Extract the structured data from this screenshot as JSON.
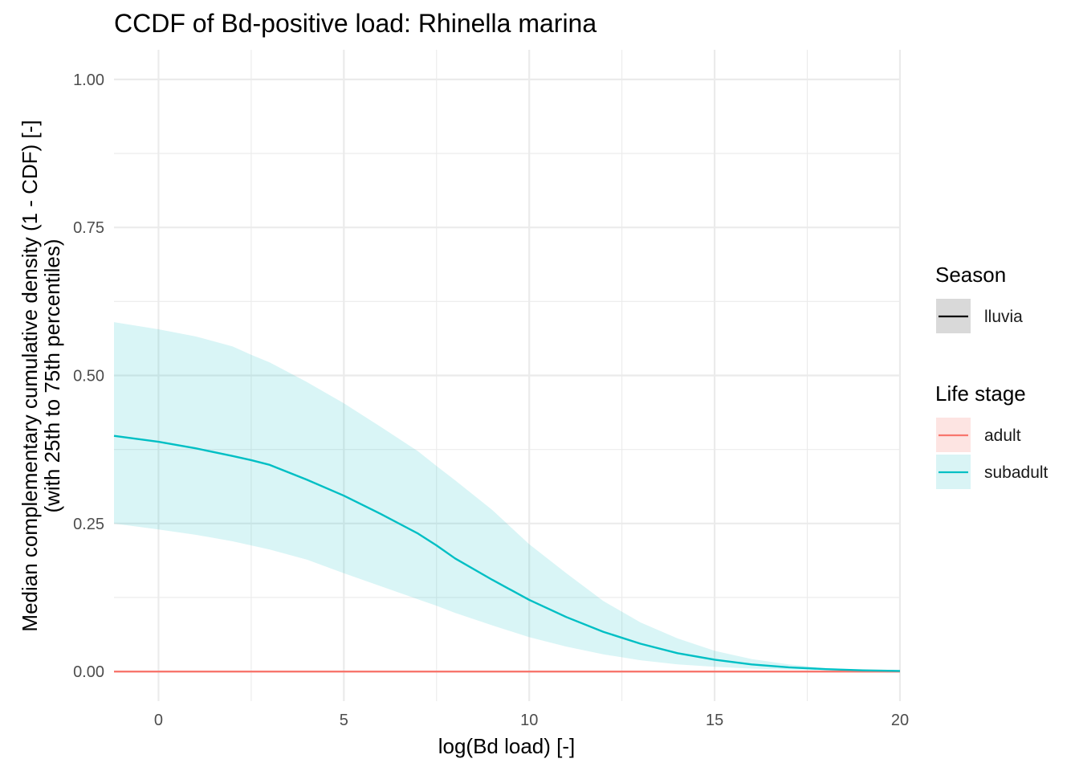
{
  "chart_data": {
    "type": "line",
    "title": "CCDF of Bd-positive load: Rhinella marina",
    "xlabel": "log(Bd load) [-]",
    "ylabel_line1": "Median complementary cumulative density (1 - CDF) [-]",
    "ylabel_line2": "(with 25th to 75th percentiles)",
    "xlim": [
      -1.2,
      20
    ],
    "ylim": [
      -0.05,
      1.05
    ],
    "x_ticks": [
      0,
      5,
      10,
      15,
      20
    ],
    "x_tick_labels": [
      "0",
      "5",
      "10",
      "15",
      "20"
    ],
    "y_ticks": [
      0,
      0.25,
      0.5,
      0.75,
      1.0
    ],
    "y_tick_labels": [
      "0.00",
      "0.25",
      "0.50",
      "0.75",
      "1.00"
    ],
    "grid": true,
    "legend_position": "right",
    "legend": [
      {
        "title": "Season",
        "entries": [
          {
            "label": "lluvia",
            "color": "#000000",
            "fill": "#d9d9d9"
          }
        ]
      },
      {
        "title": "Life stage",
        "entries": [
          {
            "label": "adult",
            "color": "#F8766D",
            "fill": "#fde4e2"
          },
          {
            "label": "subadult",
            "color": "#00BFC4",
            "fill": "#d9f4f5"
          }
        ]
      }
    ],
    "series": [
      {
        "name": "adult",
        "color": "#F8766D",
        "x": [
          -1.2,
          20
        ],
        "y": [
          0.0,
          0.0
        ],
        "lower": [
          0.0,
          0.0
        ],
        "upper": [
          0.0,
          0.0
        ]
      },
      {
        "name": "subadult",
        "color": "#00BFC4",
        "ribbon_color": "#00BFC4",
        "x": [
          -1.2,
          0,
          1,
          2,
          2.5,
          3,
          4,
          5,
          6,
          7,
          7.5,
          8,
          9,
          10,
          11,
          12,
          13,
          14,
          15,
          16,
          17,
          18,
          19,
          20
        ],
        "y": [
          0.398,
          0.388,
          0.377,
          0.364,
          0.357,
          0.349,
          0.324,
          0.297,
          0.266,
          0.233,
          0.213,
          0.191,
          0.155,
          0.121,
          0.092,
          0.067,
          0.047,
          0.031,
          0.02,
          0.012,
          0.007,
          0.004,
          0.002,
          0.001
        ],
        "lower": [
          0.25,
          0.24,
          0.231,
          0.22,
          0.213,
          0.206,
          0.189,
          0.166,
          0.144,
          0.122,
          0.111,
          0.099,
          0.078,
          0.058,
          0.042,
          0.029,
          0.019,
          0.012,
          0.008,
          0.005,
          0.003,
          0.002,
          0.001,
          0.0
        ],
        "upper": [
          0.59,
          0.578,
          0.566,
          0.549,
          0.535,
          0.522,
          0.489,
          0.453,
          0.413,
          0.372,
          0.347,
          0.323,
          0.273,
          0.215,
          0.166,
          0.119,
          0.083,
          0.056,
          0.035,
          0.021,
          0.012,
          0.006,
          0.003,
          0.001
        ]
      }
    ]
  }
}
